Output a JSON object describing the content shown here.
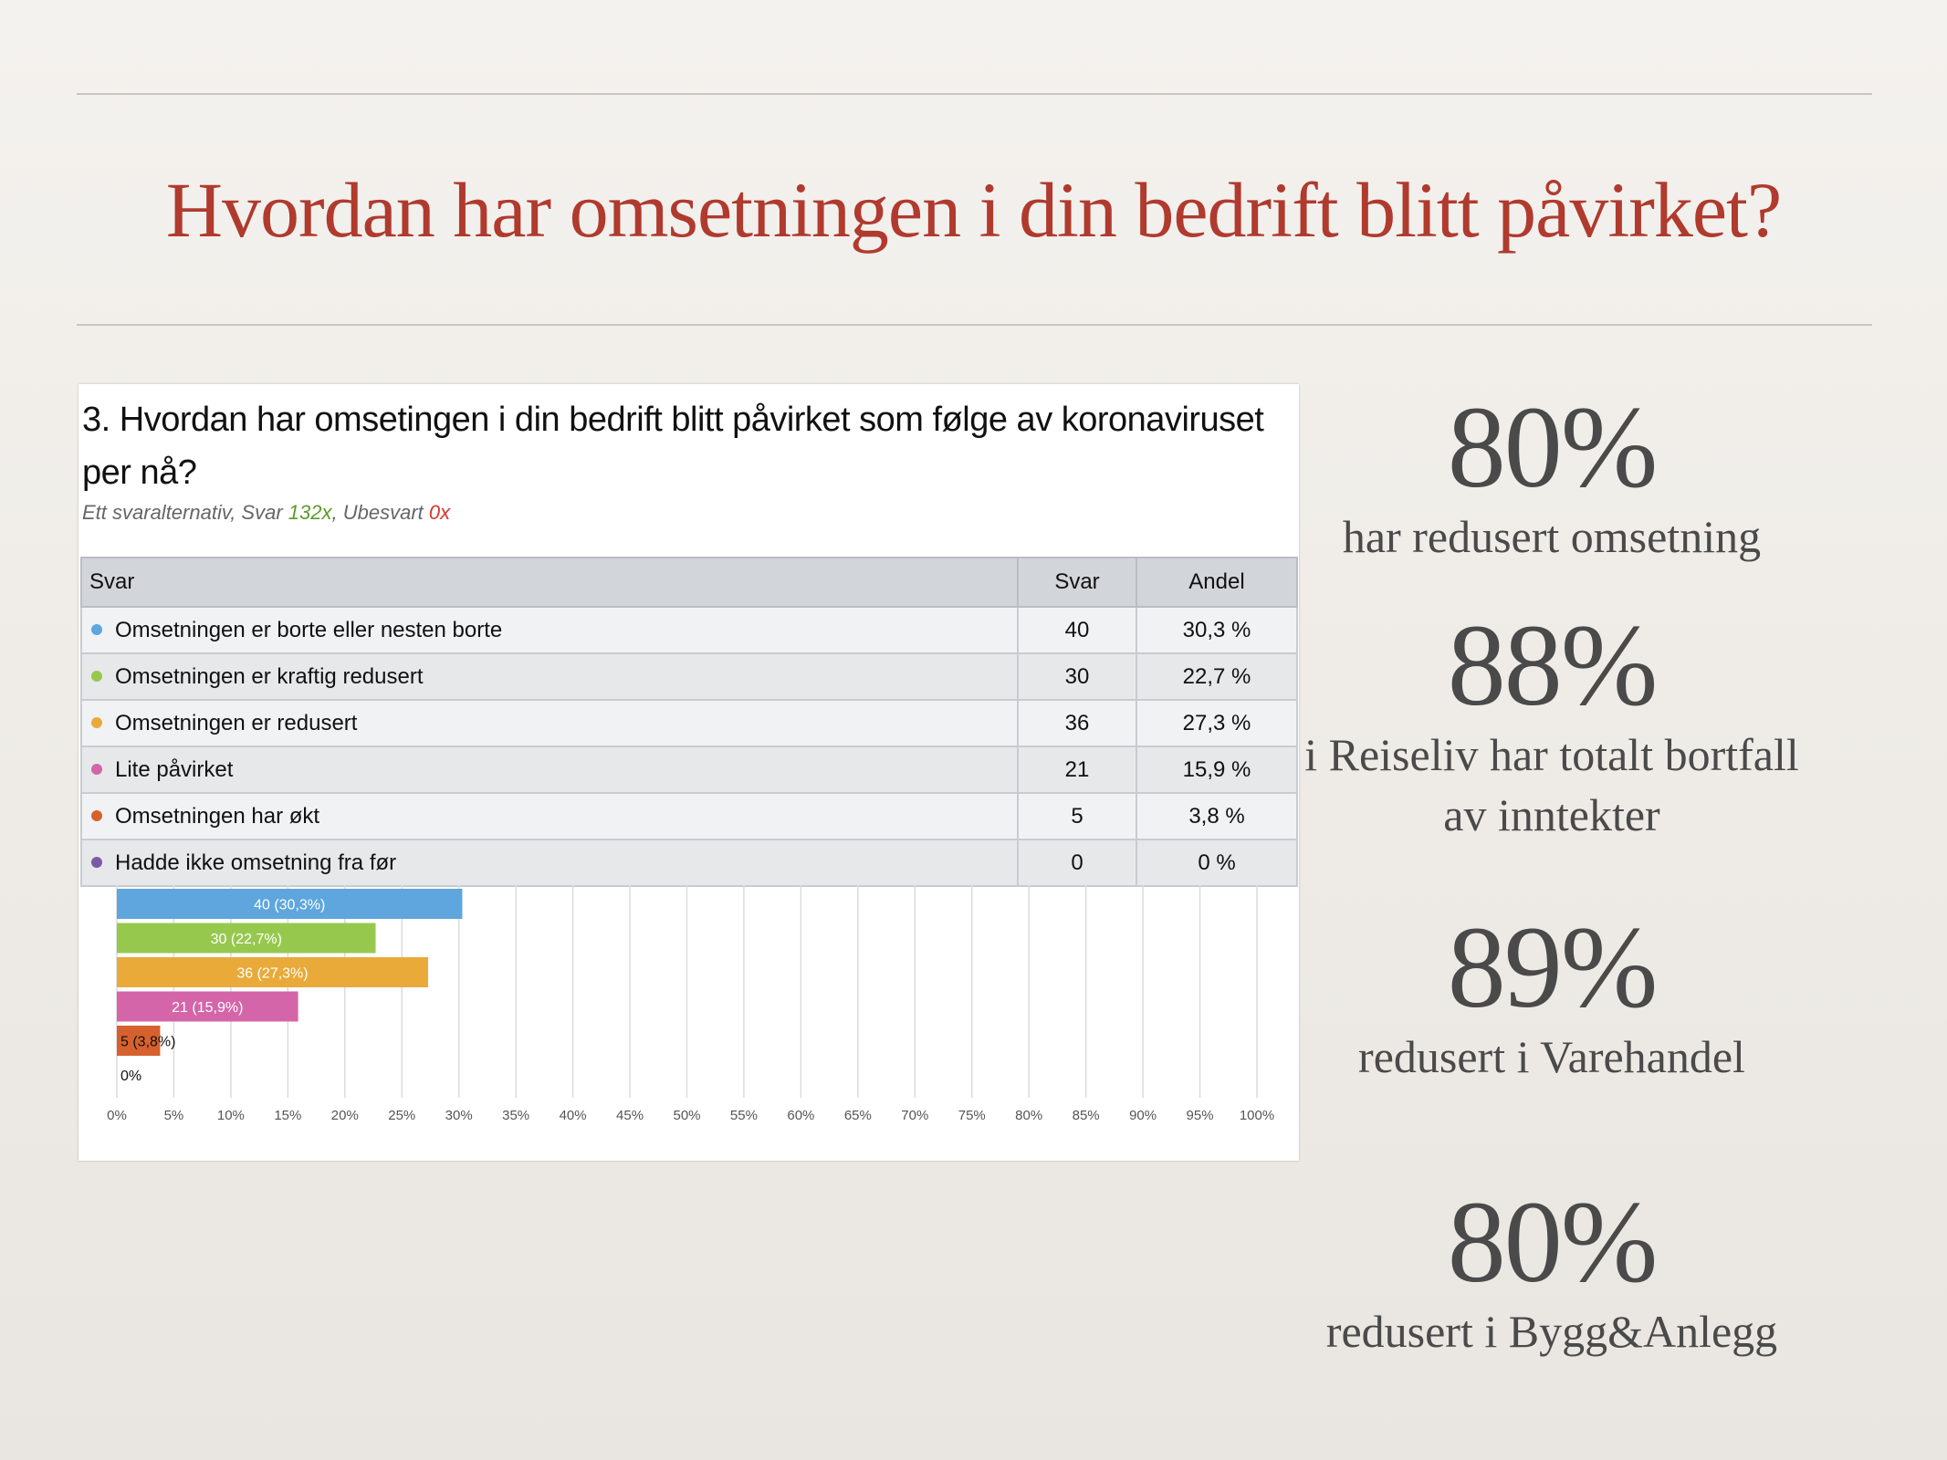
{
  "slide": {
    "title": "Hvordan har omsetningen i din bedrift blitt påvirket?"
  },
  "survey": {
    "question": "3. Hvordan har omsetingen i din bedrift blitt påvirket som følge av koronaviruset per nå?",
    "subtitle_prefix": "Ett svaralternativ, Svar ",
    "answered": "132x",
    "subtitle_mid": ", Ubesvart ",
    "unanswered": "0x",
    "columns": [
      "Svar",
      "Svar",
      "Andel"
    ],
    "rows": [
      {
        "label": "Omsetningen er borte eller nesten borte",
        "count": "40",
        "share": "30,3 %",
        "color": "#5ea6dd"
      },
      {
        "label": "Omsetningen er kraftig redusert",
        "count": "30",
        "share": "22,7 %",
        "color": "#97c84e"
      },
      {
        "label": "Omsetningen er redusert",
        "count": "36",
        "share": "27,3 %",
        "color": "#e9aa3a"
      },
      {
        "label": "Lite påvirket",
        "count": "21",
        "share": "15,9 %",
        "color": "#d465a8"
      },
      {
        "label": "Omsetningen har økt",
        "count": "5",
        "share": "3,8 %",
        "color": "#d6612e"
      },
      {
        "label": "Hadde ikke omsetning fra før",
        "count": "0",
        "share": "0 %",
        "color": "#7a5aa6"
      }
    ]
  },
  "chart_data": {
    "type": "bar",
    "orientation": "horizontal",
    "categories": [
      "Omsetningen er borte eller nesten borte",
      "Omsetningen er kraftig redusert",
      "Omsetningen er redusert",
      "Lite påvirket",
      "Omsetningen har økt",
      "Hadde ikke omsetning fra før"
    ],
    "values": [
      30.3,
      22.7,
      27.3,
      15.9,
      3.8,
      0
    ],
    "data_labels": [
      "40 (30,3%)",
      "30 (22,7%)",
      "36 (27,3%)",
      "21 (15,9%)",
      "5 (3,8%)",
      "0%"
    ],
    "colors": [
      "#5ea6dd",
      "#97c84e",
      "#e9aa3a",
      "#d465a8",
      "#d6612e",
      "#7a5aa6"
    ],
    "xlim": [
      0,
      100
    ],
    "xticks": [
      "0%",
      "5%",
      "10%",
      "15%",
      "20%",
      "25%",
      "30%",
      "35%",
      "40%",
      "45%",
      "50%",
      "55%",
      "60%",
      "65%",
      "70%",
      "75%",
      "80%",
      "85%",
      "90%",
      "95%",
      "100%"
    ],
    "grid": true
  },
  "stats": [
    {
      "value": "80%",
      "label": "har redusert omsetning"
    },
    {
      "value": "88%",
      "label": "i Reiseliv har totalt bortfall av inntekter"
    },
    {
      "value": "89%",
      "label": "redusert i Varehandel"
    },
    {
      "value": "80%",
      "label": "redusert i Bygg&Anlegg"
    }
  ]
}
